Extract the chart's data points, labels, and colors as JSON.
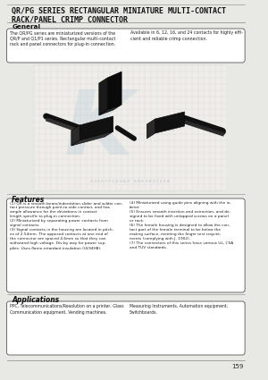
{
  "title_line1": "QR/PG SERIES RECTANGULAR MINIATURE MULTI-CONTACT",
  "title_line2": "RACK/PANEL CRIMP CONNECTOR",
  "section_general": "General",
  "general_text_left": "The QR/PG series are miniaturized versions of the\nQR/P and Q1/P1 series. Rectangular multi-contact\nrack and panel connectors for plug-in connection.",
  "general_text_right": "Available in 6, 12, 16, and 24 contacts for highly effi-\ncient and reliable crimp connection.",
  "section_features": "Features",
  "features_left": "(1) QR is a smooth beam/indentation-slider and wilder con-\ntact pressure through point-to-side contact, and has\nample allowance for the deviations in contact\nlength specific to plug-in connection.\n(2) Miniaturized by separating power contacts from\nsignal contacts.\n(3) Signal contacts in the housing are located in pitch-\nes of 2.54mm. The opposed contacts at one end of\nthe connector are spaced 4.6mm so that they can\nwithstand high voltage. Div-by way for power sup-\nplies. Uses flame-retardant insulation (UL94HB).",
  "features_right": "(4) Miniaturized using guide pins aligning with the in-\nterior.\n(5) Ensures smooth insertion and extraction, and de-\nsigned to be fixed with untapped screws on a panel\nor rack.\n(6) The female housing is designed to allow the con-\ntact part of the female terminal to be below the\nmating surface, meeting the finger test require-\nments (complying with J. 1902).\n(7) The connectors of this series have various UL, CSA\nand TUV standards.",
  "section_applications": "Applications",
  "applications_left": "PPC, Telecommunications/Resolution on a printer, Glass\nCommunication equipment, Vending machines.",
  "applications_right": "Measuring Instruments, Automation equipment,\nSwitchboards.",
  "page_number": "159",
  "bg_color": "#e8e8e4",
  "box_bg": "#ffffff",
  "box_ec": "#555555",
  "title_color": "#111111",
  "text_color": "#222222",
  "watermark_color": "#b8ccd8",
  "watermark_text_color": "#aabbcc",
  "grid_color": "#c0cdd8",
  "line_color": "#888888",
  "top_line_color": "#999999"
}
